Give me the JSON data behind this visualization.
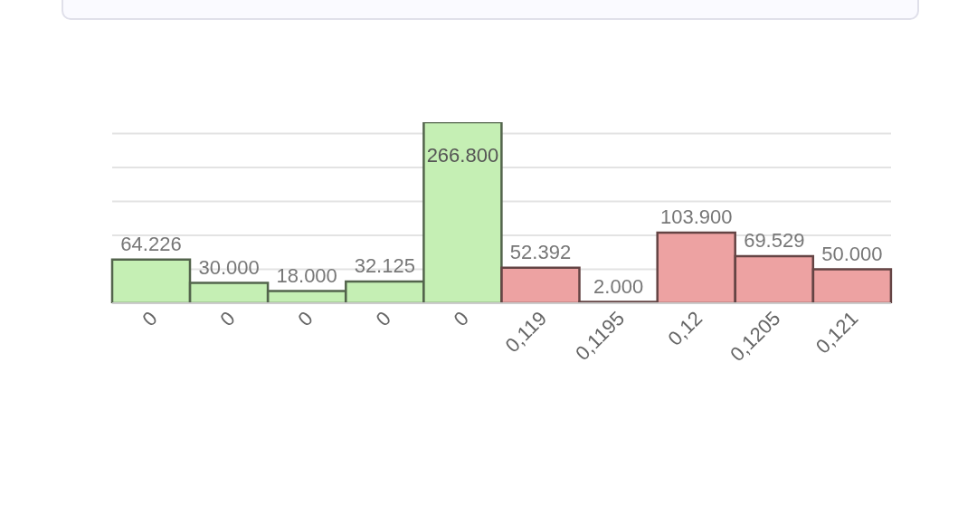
{
  "chart_data": {
    "type": "bar",
    "categories": [
      "0",
      "0",
      "0",
      "0",
      "0",
      "0,119",
      "0,1195",
      "0,12",
      "0,1205",
      "0,121"
    ],
    "values": [
      64226,
      30000,
      18000,
      32125,
      266800,
      52392,
      2000,
      103900,
      69529,
      50000
    ],
    "value_labels": [
      "64.226",
      "30.000",
      "18.000",
      "32.125",
      "266.800",
      "52.392",
      "2.000",
      "103.900",
      "69.529",
      "50.000"
    ],
    "colors": [
      "#c5efb4",
      "#c5efb4",
      "#c5efb4",
      "#c5efb4",
      "#c5efb4",
      "#eda2a2",
      "#eda2a2",
      "#eda2a2",
      "#eda2a2",
      "#eda2a2"
    ],
    "tick_labels": "x",
    "grid": "y",
    "legend": false
  }
}
